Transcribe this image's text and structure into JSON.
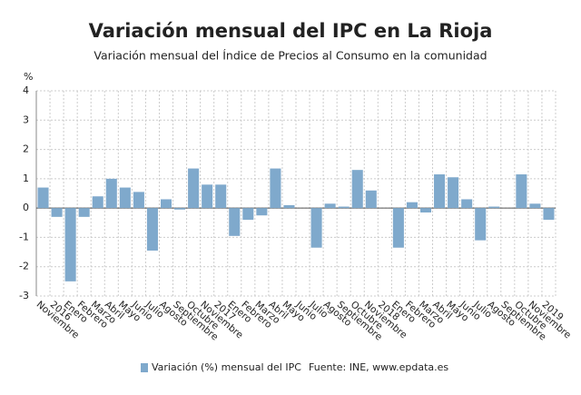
{
  "chart_data": {
    "type": "bar",
    "title": "Variación mensual del IPC en La Rioja",
    "subtitle": "Variación mensual del Índice de Precios al Consumo en la comunidad",
    "y_unit": "%",
    "source": "Fuente: INE, www.epdata.es",
    "categories": [
      "Noviembre",
      "2016",
      "Enero",
      "Febrero",
      "Marzo",
      "Abril",
      "Mayo",
      "Junio",
      "Julio",
      "Agosto",
      "Septiembre",
      "Octubre",
      "Noviembre",
      "2017",
      "Enero",
      "Febrero",
      "Marzo",
      "Abril",
      "Mayo",
      "Junio",
      "Julio",
      "Agosto",
      "Septiembre",
      "Octubre",
      "Noviembre",
      "2018",
      "Enero",
      "Febrero",
      "Marzo",
      "Abril",
      "Mayo",
      "Junio",
      "Julio",
      "Agosto",
      "Septiembre",
      "Octubre",
      "Noviembre",
      "2019"
    ],
    "series": [
      {
        "name": "Variación (%) mensual del IPC",
        "color": "#7fa9cc",
        "values": [
          0.7,
          -0.3,
          -2.5,
          -0.3,
          0.4,
          1.0,
          0.7,
          0.55,
          -1.45,
          0.3,
          -0.05,
          1.35,
          0.8,
          0.8,
          -0.95,
          -0.4,
          -0.25,
          1.35,
          0.1,
          0.0,
          -1.35,
          0.15,
          0.05,
          1.3,
          0.6,
          0.0,
          -1.35,
          0.2,
          -0.15,
          1.15,
          1.05,
          0.3,
          -1.1,
          0.05,
          0.0,
          1.15,
          0.15,
          -0.4
        ]
      }
    ],
    "ylim": [
      -3,
      4
    ],
    "yticks": [
      -3,
      -2,
      -1,
      0,
      1,
      2,
      3,
      4
    ],
    "grid": true
  }
}
